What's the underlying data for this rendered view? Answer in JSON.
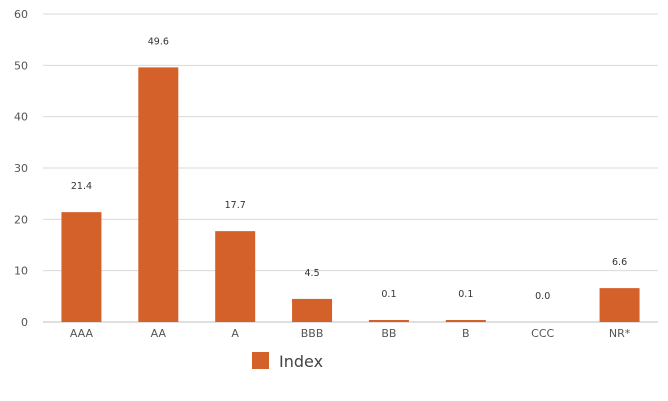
{
  "chart_data": {
    "type": "bar",
    "categories": [
      "AAA",
      "AA",
      "A",
      "BBB",
      "BB",
      "B",
      "CCC",
      "NR*"
    ],
    "series": [
      {
        "name": "Index",
        "values": [
          21.4,
          49.6,
          17.7,
          4.5,
          0.1,
          0.1,
          0.0,
          6.6
        ],
        "data_labels": [
          "21.4",
          "49.6",
          "17.7",
          "4.5",
          "0.1",
          "0.1",
          "0.0",
          "6.6"
        ]
      }
    ],
    "ylim": [
      0,
      60
    ],
    "yticks": [
      0,
      10,
      20,
      30,
      40,
      50,
      60
    ],
    "grid": true,
    "legend": "bottom-center",
    "colors": {
      "bar": "#d4602a",
      "grid": "#d9d9d9",
      "axis": "#bfbfbf"
    }
  }
}
